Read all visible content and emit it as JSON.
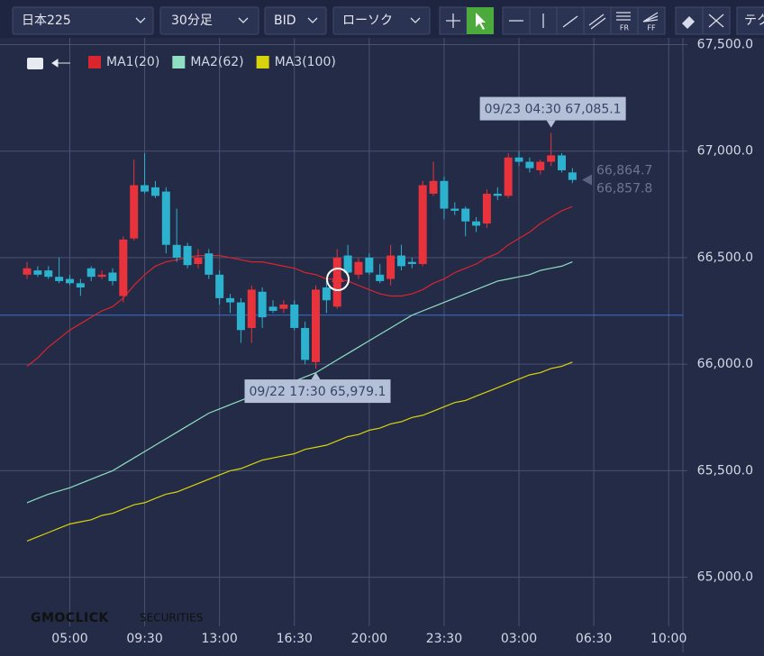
{
  "toolbar": {
    "symbol": "日本225",
    "interval": "30分足",
    "price_type": "BID",
    "chart_type": "ローソク",
    "tool_labels": [
      "FR",
      "FF"
    ],
    "more": "テク"
  },
  "logo": {
    "brand": "GMOCLICK",
    "sub": "SECURITIES"
  },
  "chart_data": {
    "type": "candlestick",
    "categories": [
      null,
      null,
      null,
      null,
      "05:00",
      null,
      null,
      null,
      null,
      null,
      null,
      "09:30",
      null,
      null,
      null,
      null,
      null,
      null,
      "13:00",
      null,
      null,
      null,
      null,
      null,
      null,
      "16:30",
      null,
      null,
      null,
      null,
      null,
      null,
      "20:00",
      null,
      null,
      null,
      null,
      null,
      null,
      "23:30",
      null,
      null,
      null,
      null,
      null,
      null,
      "03:00",
      null,
      null,
      null,
      null,
      null,
      null,
      "06:30",
      null,
      null,
      null,
      null,
      null,
      null,
      "10:00"
    ],
    "candles": {
      "up_color": "#e8323c",
      "down_color": "#2cb2cf",
      "open": [
        66420,
        66440,
        66440,
        66410,
        66400,
        66380,
        66450,
        66410,
        66430,
        66320,
        66590,
        66840,
        66830,
        66810,
        66560,
        66555,
        66470,
        66520,
        66420,
        66310,
        66290,
        66170,
        66340,
        66270,
        66260,
        66280,
        66170,
        66010,
        66360,
        66270,
        66510,
        66420,
        66500,
        66420,
        66400,
        66510,
        66480,
        66470,
        66800,
        66860,
        66730,
        66730,
        66670,
        66660,
        66800,
        66790,
        66970,
        66950,
        66910,
        66950,
        66980,
        66900,
        null,
        null,
        null,
        null,
        null,
        null,
        null,
        null,
        null
      ],
      "high": [
        66480,
        66460,
        66460,
        66500,
        66420,
        66400,
        66460,
        66440,
        66450,
        66600,
        66960,
        66990,
        66860,
        66830,
        66730,
        66570,
        66540,
        66540,
        66440,
        66330,
        66310,
        66370,
        66360,
        66300,
        66300,
        66300,
        66200,
        66370,
        66400,
        66540,
        66560,
        66500,
        66520,
        66470,
        66560,
        66560,
        66500,
        66860,
        66950,
        66880,
        66760,
        66740,
        66690,
        66820,
        66830,
        66990,
        67000,
        66970,
        66960,
        67085.1,
        66990,
        66920,
        null,
        null,
        null,
        null,
        null,
        null,
        null,
        null,
        null
      ],
      "low": [
        66400,
        66410,
        66400,
        66380,
        66370,
        66320,
        66390,
        66400,
        66370,
        66290,
        66580,
        66800,
        66780,
        66520,
        66480,
        66450,
        66450,
        66400,
        66280,
        66240,
        66100,
        66100,
        66170,
        66240,
        66240,
        66160,
        66000,
        65979.1,
        66240,
        66260,
        66410,
        66400,
        66420,
        66380,
        66370,
        66440,
        66450,
        66460,
        66790,
        66680,
        66700,
        66600,
        66620,
        66640,
        66770,
        66780,
        66930,
        66900,
        66890,
        66930,
        66900,
        66850,
        null,
        null,
        null,
        null,
        null,
        null,
        null,
        null,
        null
      ],
      "close": [
        66450,
        66420,
        66410,
        66390,
        66380,
        66360,
        66410,
        66420,
        66390,
        66585,
        66840,
        66810,
        66790,
        66560,
        66500,
        66465,
        66500,
        66420,
        66310,
        66290,
        66160,
        66350,
        66220,
        66250,
        66280,
        66170,
        66020,
        66350,
        66300,
        66500,
        66430,
        66480,
        66430,
        66390,
        66510,
        66460,
        66470,
        66840,
        66860,
        66730,
        66720,
        66670,
        66650,
        66800,
        66790,
        66970,
        66950,
        66920,
        66950,
        66980,
        66910,
        66864.7,
        null,
        null,
        null,
        null,
        null,
        null,
        null,
        null,
        null
      ]
    },
    "series": [
      {
        "name": "MA1(20)",
        "color": "#d8252e",
        "values": [
          65990,
          66030,
          66080,
          66120,
          66160,
          66190,
          66220,
          66250,
          66270,
          66310,
          66370,
          66420,
          66460,
          66480,
          66490,
          66500,
          66510,
          66510,
          66510,
          66500,
          66490,
          66480,
          66480,
          66470,
          66460,
          66450,
          66430,
          66420,
          66400,
          66400,
          66390,
          66370,
          66350,
          66330,
          66320,
          66320,
          66330,
          66350,
          66380,
          66400,
          66430,
          66450,
          66470,
          66500,
          66520,
          66560,
          66590,
          66620,
          66660,
          66690,
          66720,
          66740,
          null,
          null,
          null,
          null,
          null,
          null,
          null,
          null,
          null
        ]
      },
      {
        "name": "MA2(62)",
        "color": "#8fdfc2",
        "values": [
          65350,
          65370,
          65390,
          65405,
          65420,
          65440,
          65460,
          65480,
          65500,
          65530,
          65560,
          65590,
          65620,
          65650,
          65680,
          65710,
          65740,
          65770,
          65790,
          65810,
          65830,
          65850,
          65870,
          65890,
          65900,
          65920,
          65940,
          65960,
          65990,
          66020,
          66050,
          66080,
          66110,
          66140,
          66170,
          66200,
          66230,
          66250,
          66270,
          66290,
          66310,
          66330,
          66350,
          66370,
          66390,
          66400,
          66410,
          66420,
          66440,
          66450,
          66460,
          66480,
          null,
          null,
          null,
          null,
          null,
          null,
          null,
          null,
          null
        ]
      },
      {
        "name": "MA3(100)",
        "color": "#d8d40c",
        "values": [
          65170,
          65190,
          65210,
          65230,
          65250,
          65260,
          65270,
          65290,
          65300,
          65320,
          65340,
          65350,
          65370,
          65390,
          65400,
          65420,
          65440,
          65460,
          65480,
          65500,
          65510,
          65530,
          65550,
          65560,
          65570,
          65580,
          65600,
          65610,
          65620,
          65640,
          65660,
          65670,
          65690,
          65700,
          65720,
          65730,
          65750,
          65760,
          65780,
          65800,
          65820,
          65830,
          65850,
          65870,
          65890,
          65910,
          65930,
          65950,
          65960,
          65980,
          65990,
          66010,
          null,
          null,
          null,
          null,
          null,
          null,
          null,
          null,
          null
        ]
      }
    ],
    "hline": {
      "value": 66230,
      "color": "#3b6fd0"
    },
    "annotations": [
      {
        "text": "09/23 04:30 67,085.1",
        "value": 67085.1
      },
      {
        "text": "09/22 17:30 65,979.1",
        "value": 65979.1
      }
    ],
    "price_labels": [
      {
        "value": 66864.7,
        "label": "66,864.7"
      },
      {
        "value": 66857.8,
        "label": "66,857.8"
      }
    ],
    "ylim": [
      64770,
      67540
    ],
    "yticks": [
      {
        "value": 65000,
        "label": "65,000.0"
      },
      {
        "value": 65500,
        "label": "65,500.0"
      },
      {
        "value": 66000,
        "label": "66,000.0"
      },
      {
        "value": 66500,
        "label": "66,500.0"
      },
      {
        "value": 67000,
        "label": "67,000.0"
      },
      {
        "value": 67500,
        "label": "67,500.0"
      }
    ],
    "grid": true
  }
}
